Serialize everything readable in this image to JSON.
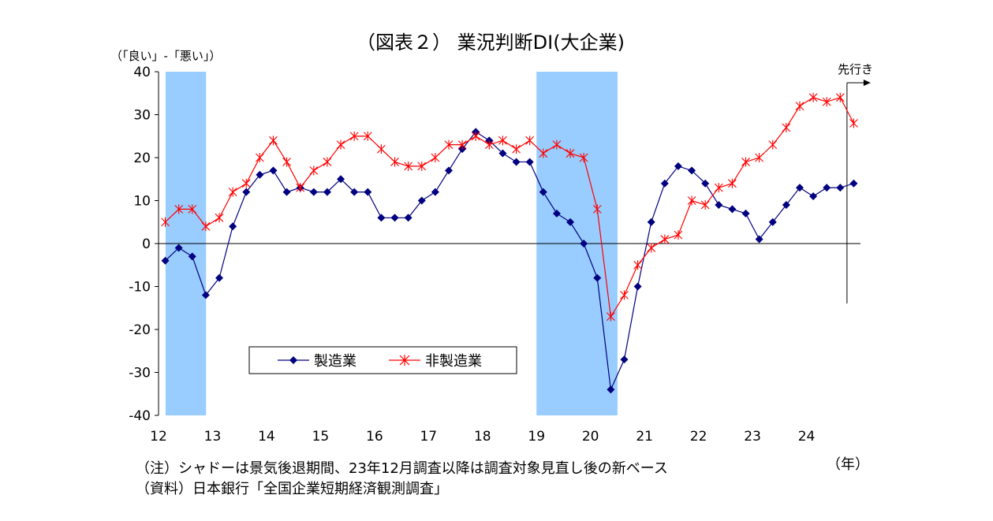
{
  "chart_data": {
    "type": "line",
    "title": "（図表２） 業況判断DI(大企業)",
    "ylabel": "（「良い」-「悪い」）",
    "xlabel": "（年）",
    "forecast_label": "先行き",
    "ylim": [
      -40,
      40
    ],
    "yticks": [
      -40,
      -30,
      -20,
      -10,
      0,
      10,
      20,
      30,
      40
    ],
    "year_labels": [
      "12",
      "13",
      "14",
      "15",
      "16",
      "17",
      "18",
      "19",
      "20",
      "21",
      "22",
      "23",
      "24"
    ],
    "x_start_year": 2012,
    "recession_periods": [
      [
        2012.13,
        2012.88
      ],
      [
        2019.0,
        2020.5
      ]
    ],
    "legend_position": "lower-left",
    "grid": false,
    "series": [
      {
        "name": "製造業",
        "color": "#000080",
        "marker": "diamond",
        "values": [
          -4,
          -1,
          -3,
          -12,
          -8,
          4,
          12,
          16,
          17,
          12,
          13,
          12,
          12,
          15,
          12,
          12,
          6,
          6,
          6,
          10,
          12,
          17,
          22,
          26,
          24,
          21,
          19,
          19,
          12,
          7,
          5,
          0,
          -8,
          -34,
          -27,
          -10,
          5,
          14,
          18,
          17,
          14,
          9,
          8,
          7,
          1,
          5,
          9,
          13,
          11,
          13,
          13,
          14
        ]
      },
      {
        "name": "非製造業",
        "color": "#ff0000",
        "marker": "asterisk",
        "values": [
          5,
          8,
          8,
          4,
          6,
          12,
          14,
          20,
          24,
          19,
          13,
          17,
          19,
          23,
          25,
          25,
          22,
          19,
          18,
          18,
          20,
          23,
          23,
          25,
          23,
          24,
          22,
          24,
          21,
          23,
          21,
          20,
          8,
          -17,
          -12,
          -5,
          -1,
          1,
          2,
          10,
          9,
          13,
          14,
          19,
          20,
          23,
          27,
          32,
          34,
          33,
          34,
          28
        ]
      }
    ]
  },
  "notes": {
    "line1": "（注）シャドーは景気後退期間、23年12月調査以降は調査対象見直し後の新ベース",
    "line2": "（資料）日本銀行「全国企業短期経済観測調査」"
  }
}
